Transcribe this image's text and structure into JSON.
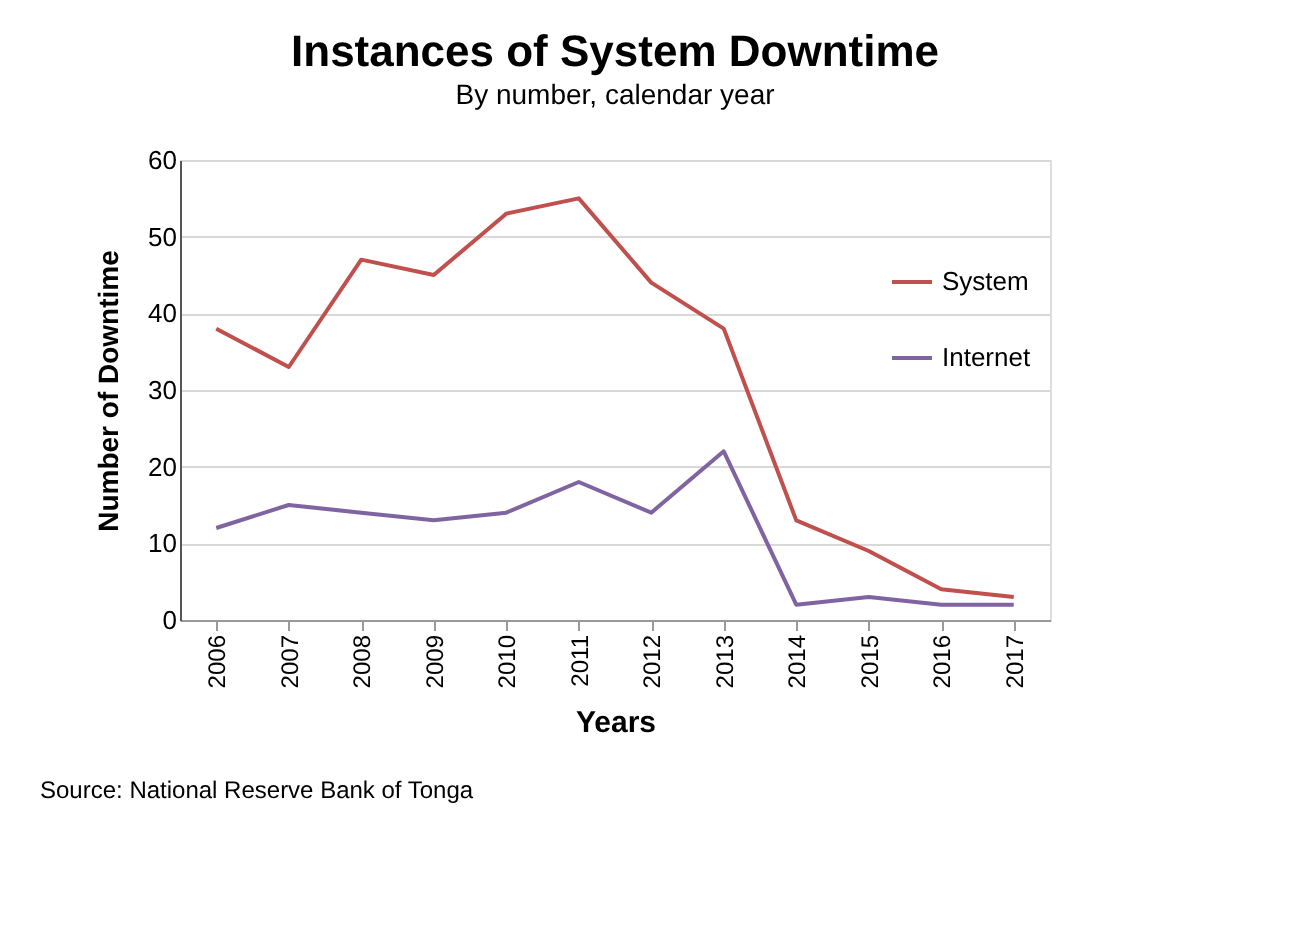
{
  "chart_data": {
    "type": "line",
    "title": "Instances of System Downtime",
    "subtitle": "By number, calendar year",
    "xlabel": "Years",
    "ylabel": "Number of Downtime",
    "categories": [
      "2006",
      "2007",
      "2008",
      "2009",
      "2010",
      "2011",
      "2012",
      "2013",
      "2014",
      "2015",
      "2016",
      "2017"
    ],
    "series": [
      {
        "name": "System",
        "color": "#c0504d",
        "values": [
          38,
          33,
          47,
          45,
          53,
          55,
          44,
          38,
          13,
          9,
          4,
          3
        ]
      },
      {
        "name": "Internet",
        "color": "#8064a2",
        "values": [
          12,
          15,
          14,
          13,
          14,
          18,
          14,
          22,
          2,
          3,
          2,
          2
        ]
      }
    ],
    "ylim": [
      0,
      60
    ],
    "yticks": [
      0,
      10,
      20,
      30,
      40,
      50,
      60
    ],
    "grid": "y",
    "legend": "right",
    "marker": "none",
    "line_style": "solid",
    "annotations": [
      "Source: National Reserve Bank of Tonga"
    ]
  }
}
